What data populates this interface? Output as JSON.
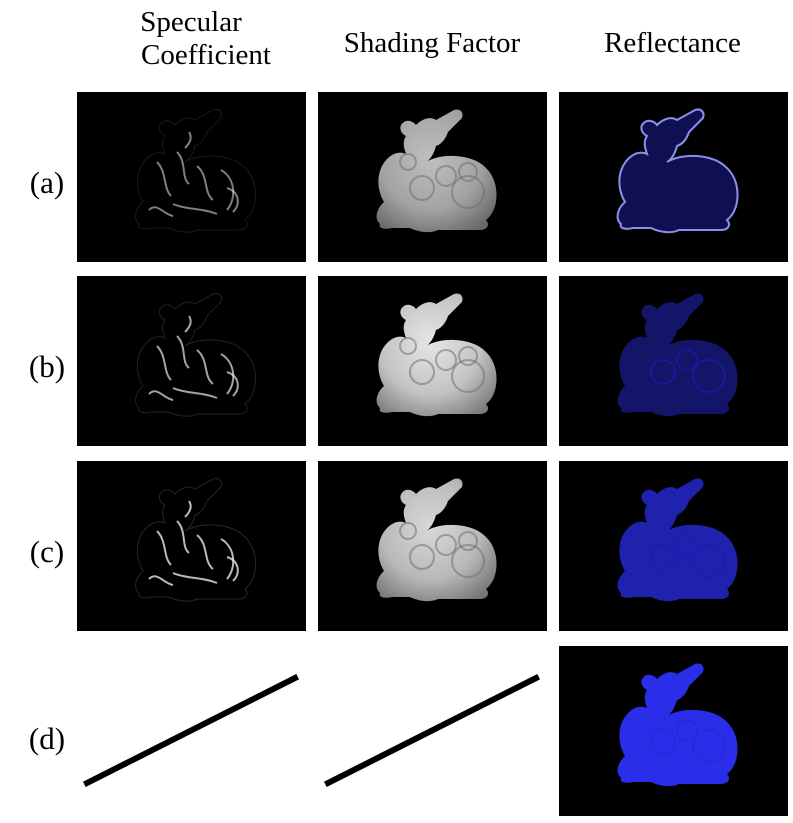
{
  "columns": [
    {
      "lines": [
        "Specular",
        "Coefficient"
      ]
    },
    {
      "lines": [
        "Shading Factor"
      ]
    },
    {
      "lines": [
        "Reflectance"
      ]
    }
  ],
  "rows": [
    {
      "label": "(a)",
      "cells": [
        "specular",
        "shading",
        "reflectance"
      ]
    },
    {
      "label": "(b)",
      "cells": [
        "specular",
        "shading",
        "reflectance"
      ]
    },
    {
      "label": "(c)",
      "cells": [
        "specular",
        "shading",
        "reflectance"
      ]
    },
    {
      "label": "(d)",
      "cells": [
        "none",
        "none",
        "reflectance"
      ]
    }
  ],
  "colors": {
    "background": "#ffffff",
    "panel": "#000000",
    "reflectance_blue": "#2a2ee8",
    "shading_gray": "#d9d9d9"
  }
}
